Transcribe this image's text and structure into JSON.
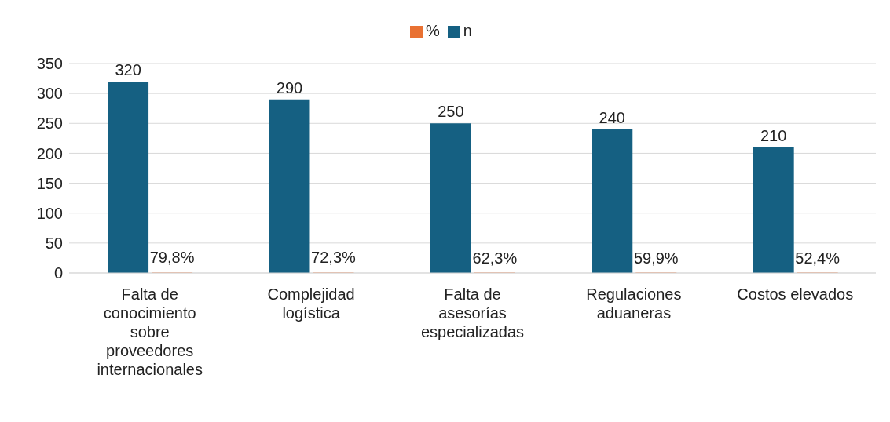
{
  "chart_data": {
    "type": "bar",
    "categories": [
      "Falta de conocimiento sobre proveedores internacionales",
      "Complejidad logística",
      "Falta de asesorías especializadas",
      "Regulaciones aduaneras",
      "Costos elevados"
    ],
    "series": [
      {
        "name": "n",
        "color": "#156082",
        "values": [
          320,
          290,
          250,
          240,
          210
        ],
        "value_labels": [
          "320",
          "290",
          "250",
          "240",
          "210"
        ]
      },
      {
        "name": "%",
        "color": "#e97132",
        "values": [
          0.798,
          0.723,
          0.623,
          0.599,
          0.524
        ],
        "value_labels": [
          "79,8%",
          "72,3%",
          "62,3%",
          "59,9%",
          "52,4%"
        ]
      }
    ],
    "ylim": [
      0,
      350
    ],
    "yticks": [
      0,
      50,
      100,
      150,
      200,
      250,
      300,
      350
    ],
    "grid": "y",
    "legend": "top"
  }
}
